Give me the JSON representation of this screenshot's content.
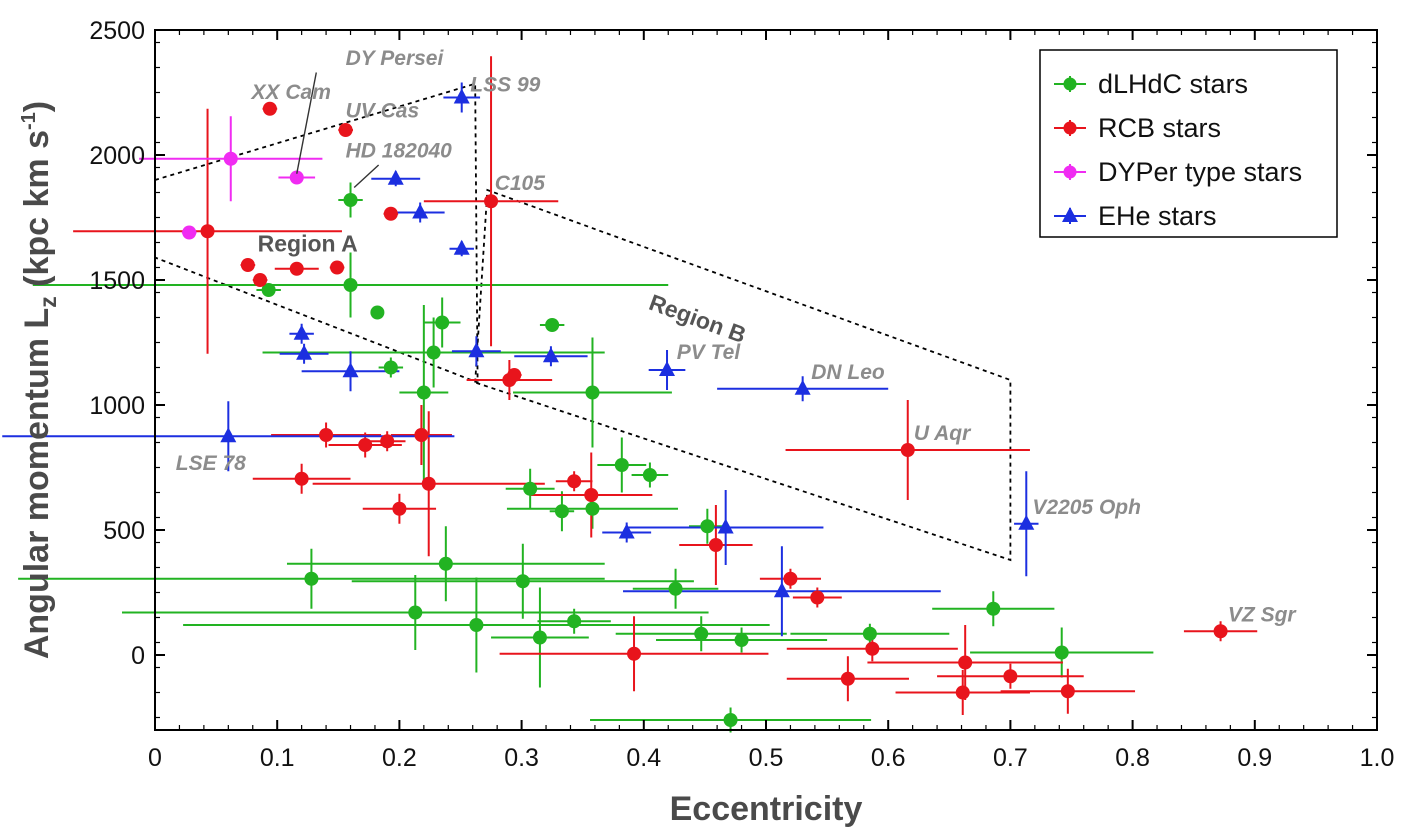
{
  "chart_data": {
    "type": "scatter",
    "xlabel": "Eccentricity",
    "ylabel": "Angular momentum L",
    "ylabel_sub": "z",
    "ylabel_unit": " (kpc  km s",
    "ylabel_sup": "-1",
    "ylabel_close": ")",
    "xlim": [
      0,
      1.0
    ],
    "ylim": [
      -300,
      2500
    ],
    "x_ticks": [
      0,
      0.1,
      0.2,
      0.3,
      0.4,
      0.5,
      0.6,
      0.7,
      0.8,
      0.9,
      1.0
    ],
    "x_tick_labels": [
      "0",
      "0.1",
      "0.2",
      "0.3",
      "0.4",
      "0.5",
      "0.6",
      "0.7",
      "0.8",
      "0.9",
      "1.0"
    ],
    "y_ticks": [
      0,
      500,
      1000,
      1500,
      2000,
      2500
    ],
    "y_tick_labels": [
      "0",
      "500",
      "1000",
      "1500",
      "2000",
      "2500"
    ],
    "legend_position": "top-right",
    "series": [
      {
        "name": "dLHdC stars",
        "color": "#22b322",
        "marker": "circle",
        "points": [
          {
            "x": 0.16,
            "y": 1820,
            "xe": 0.01,
            "ye": 70
          },
          {
            "x": 0.16,
            "y": 1480,
            "xe": 0.26,
            "ye": 130
          },
          {
            "x": 0.093,
            "y": 1460,
            "xe": 0.01,
            "ye": 10
          },
          {
            "x": 0.182,
            "y": 1370,
            "xe": 0.005,
            "ye": 10
          },
          {
            "x": 0.235,
            "y": 1330,
            "xe": 0.015,
            "ye": 100
          },
          {
            "x": 0.325,
            "y": 1320,
            "xe": 0.01,
            "ye": 10
          },
          {
            "x": 0.228,
            "y": 1210,
            "xe": 0.14,
            "ye": 140
          },
          {
            "x": 0.193,
            "y": 1150,
            "xe": 0.01,
            "ye": 40
          },
          {
            "x": 0.22,
            "y": 1050,
            "xe": 0.02,
            "ye": 350
          },
          {
            "x": 0.358,
            "y": 1050,
            "xe": 0.065,
            "ye": 220
          },
          {
            "x": 0.382,
            "y": 760,
            "xe": 0.02,
            "ye": 110
          },
          {
            "x": 0.405,
            "y": 720,
            "xe": 0.015,
            "ye": 50
          },
          {
            "x": 0.307,
            "y": 665,
            "xe": 0.02,
            "ye": 80
          },
          {
            "x": 0.333,
            "y": 575,
            "xe": 0.01,
            "ye": 80
          },
          {
            "x": 0.358,
            "y": 585,
            "xe": 0.07,
            "ye": 80
          },
          {
            "x": 0.452,
            "y": 515,
            "xe": 0.015,
            "ye": 70
          },
          {
            "x": 0.128,
            "y": 305,
            "xe": 0.24,
            "ye": 120
          },
          {
            "x": 0.238,
            "y": 365,
            "xe": 0.13,
            "ye": 150
          },
          {
            "x": 0.213,
            "y": 170,
            "xe": 0.24,
            "ye": 150
          },
          {
            "x": 0.263,
            "y": 120,
            "xe": 0.24,
            "ye": 190
          },
          {
            "x": 0.301,
            "y": 295,
            "xe": 0.14,
            "ye": 150
          },
          {
            "x": 0.315,
            "y": 70,
            "xe": 0.04,
            "ye": 200
          },
          {
            "x": 0.343,
            "y": 135,
            "xe": 0.03,
            "ye": 50
          },
          {
            "x": 0.426,
            "y": 265,
            "xe": 0.035,
            "ye": 80
          },
          {
            "x": 0.447,
            "y": 85,
            "xe": 0.07,
            "ye": 70
          },
          {
            "x": 0.48,
            "y": 60,
            "xe": 0.07,
            "ye": 50
          },
          {
            "x": 0.585,
            "y": 85,
            "xe": 0.065,
            "ye": 40
          },
          {
            "x": 0.686,
            "y": 185,
            "xe": 0.05,
            "ye": 70
          },
          {
            "x": 0.742,
            "y": 10,
            "xe": 0.075,
            "ye": 100
          },
          {
            "x": 0.471,
            "y": -260,
            "xe": 0.115,
            "ye": 50
          }
        ]
      },
      {
        "name": "RCB stars",
        "color": "#e8141c",
        "marker": "circle",
        "points": [
          {
            "x": 0.094,
            "y": 2185,
            "xe": 0.006,
            "ye": 10
          },
          {
            "x": 0.156,
            "y": 2100,
            "xe": 0.006,
            "ye": 10
          },
          {
            "x": 0.275,
            "y": 1815,
            "xe": 0.055,
            "ye": 580
          },
          {
            "x": 0.193,
            "y": 1765,
            "xe": 0.006,
            "ye": 10
          },
          {
            "x": 0.043,
            "y": 1695,
            "xe": 0.11,
            "ye": 490
          },
          {
            "x": 0.076,
            "y": 1560,
            "xe": 0.006,
            "ye": 10
          },
          {
            "x": 0.116,
            "y": 1545,
            "xe": 0.018,
            "ye": 10
          },
          {
            "x": 0.149,
            "y": 1550,
            "xe": 0.006,
            "ye": 10
          },
          {
            "x": 0.086,
            "y": 1500,
            "xe": 0.006,
            "ye": 10
          },
          {
            "x": 0.29,
            "y": 1100,
            "xe": 0.035,
            "ye": 80
          },
          {
            "x": 0.294,
            "y": 1120,
            "xe": 0.006,
            "ye": 10
          },
          {
            "x": 0.14,
            "y": 880,
            "xe": 0.045,
            "ye": 50
          },
          {
            "x": 0.172,
            "y": 840,
            "xe": 0.03,
            "ye": 50
          },
          {
            "x": 0.19,
            "y": 855,
            "xe": 0.015,
            "ye": 40
          },
          {
            "x": 0.218,
            "y": 880,
            "xe": 0.025,
            "ye": 120
          },
          {
            "x": 0.616,
            "y": 820,
            "xe": 0.1,
            "ye": 200
          },
          {
            "x": 0.12,
            "y": 705,
            "xe": 0.04,
            "ye": 60
          },
          {
            "x": 0.224,
            "y": 685,
            "xe": 0.095,
            "ye": 290
          },
          {
            "x": 0.343,
            "y": 695,
            "xe": 0.015,
            "ye": 40
          },
          {
            "x": 0.357,
            "y": 640,
            "xe": 0.05,
            "ye": 170
          },
          {
            "x": 0.2,
            "y": 585,
            "xe": 0.03,
            "ye": 60
          },
          {
            "x": 0.459,
            "y": 440,
            "xe": 0.03,
            "ye": 160
          },
          {
            "x": 0.52,
            "y": 305,
            "xe": 0.025,
            "ye": 40
          },
          {
            "x": 0.542,
            "y": 230,
            "xe": 0.02,
            "ye": 40
          },
          {
            "x": 0.392,
            "y": 5,
            "xe": 0.11,
            "ye": 150
          },
          {
            "x": 0.587,
            "y": 25,
            "xe": 0.07,
            "ye": 50
          },
          {
            "x": 0.663,
            "y": -30,
            "xe": 0.08,
            "ye": 150
          },
          {
            "x": 0.567,
            "y": -95,
            "xe": 0.05,
            "ye": 90
          },
          {
            "x": 0.7,
            "y": -85,
            "xe": 0.06,
            "ye": 50
          },
          {
            "x": 0.661,
            "y": -150,
            "xe": 0.055,
            "ye": 90
          },
          {
            "x": 0.747,
            "y": -145,
            "xe": 0.055,
            "ye": 90
          },
          {
            "x": 0.872,
            "y": 95,
            "xe": 0.03,
            "ye": 40
          }
        ]
      },
      {
        "name": "DYPer type stars",
        "color": "#f02cf2",
        "marker": "circle",
        "points": [
          {
            "x": 0.062,
            "y": 1985,
            "xe": 0.075,
            "ye": 170
          },
          {
            "x": 0.116,
            "y": 1910,
            "xe": 0.015,
            "ye": 10
          },
          {
            "x": 0.028,
            "y": 1690,
            "xe": 0.006,
            "ye": 10
          }
        ]
      },
      {
        "name": "EHe stars",
        "color": "#1c2fe0",
        "marker": "triangle",
        "points": [
          {
            "x": 0.251,
            "y": 2230,
            "xe": 0.015,
            "ye": 60
          },
          {
            "x": 0.197,
            "y": 1905,
            "xe": 0.02,
            "ye": 30
          },
          {
            "x": 0.217,
            "y": 1770,
            "xe": 0.02,
            "ye": 40
          },
          {
            "x": 0.251,
            "y": 1625,
            "xe": 0.01,
            "ye": 30
          },
          {
            "x": 0.12,
            "y": 1285,
            "xe": 0.01,
            "ye": 40
          },
          {
            "x": 0.122,
            "y": 1205,
            "xe": 0.02,
            "ye": 40
          },
          {
            "x": 0.263,
            "y": 1215,
            "xe": 0.02,
            "ye": 60
          },
          {
            "x": 0.324,
            "y": 1195,
            "xe": 0.03,
            "ye": 40
          },
          {
            "x": 0.16,
            "y": 1135,
            "xe": 0.04,
            "ye": 80
          },
          {
            "x": 0.419,
            "y": 1140,
            "xe": 0.015,
            "ye": 80
          },
          {
            "x": 0.53,
            "y": 1065,
            "xe": 0.07,
            "ye": 50
          },
          {
            "x": 0.06,
            "y": 875,
            "xe": 0.185,
            "ye": 140
          },
          {
            "x": 0.386,
            "y": 490,
            "xe": 0.02,
            "ye": 40
          },
          {
            "x": 0.467,
            "y": 510,
            "xe": 0.08,
            "ye": 150
          },
          {
            "x": 0.513,
            "y": 255,
            "xe": 0.13,
            "ye": 180
          },
          {
            "x": 0.713,
            "y": 525,
            "xe": 0.01,
            "ye": 210
          }
        ]
      }
    ],
    "star_labels": [
      {
        "text": "XX Cam",
        "x": 0.079,
        "y": 2225
      },
      {
        "text": "DY Persei",
        "x": 0.156,
        "y": 2360
      },
      {
        "text": "UV Cas",
        "x": 0.156,
        "y": 2150
      },
      {
        "text": "LSS 99",
        "x": 0.258,
        "y": 2255
      },
      {
        "text": "HD 182040",
        "x": 0.156,
        "y": 1990
      },
      {
        "text": "C105",
        "x": 0.278,
        "y": 1860
      },
      {
        "text": "PV Tel",
        "x": 0.427,
        "y": 1185
      },
      {
        "text": "DN Leo",
        "x": 0.537,
        "y": 1105
      },
      {
        "text": "U Aqr",
        "x": 0.621,
        "y": 860
      },
      {
        "text": "LSE 78",
        "x": 0.017,
        "y": 740
      },
      {
        "text": "V2205 Oph",
        "x": 0.718,
        "y": 565
      },
      {
        "text": "VZ Sgr",
        "x": 0.878,
        "y": 135
      }
    ],
    "region_labels": [
      {
        "text": "Region A",
        "x": 0.084,
        "y": 1615,
        "rotate": 0
      },
      {
        "text": "Region B",
        "x": 0.403,
        "y": 1385,
        "rotate": 20
      }
    ]
  }
}
